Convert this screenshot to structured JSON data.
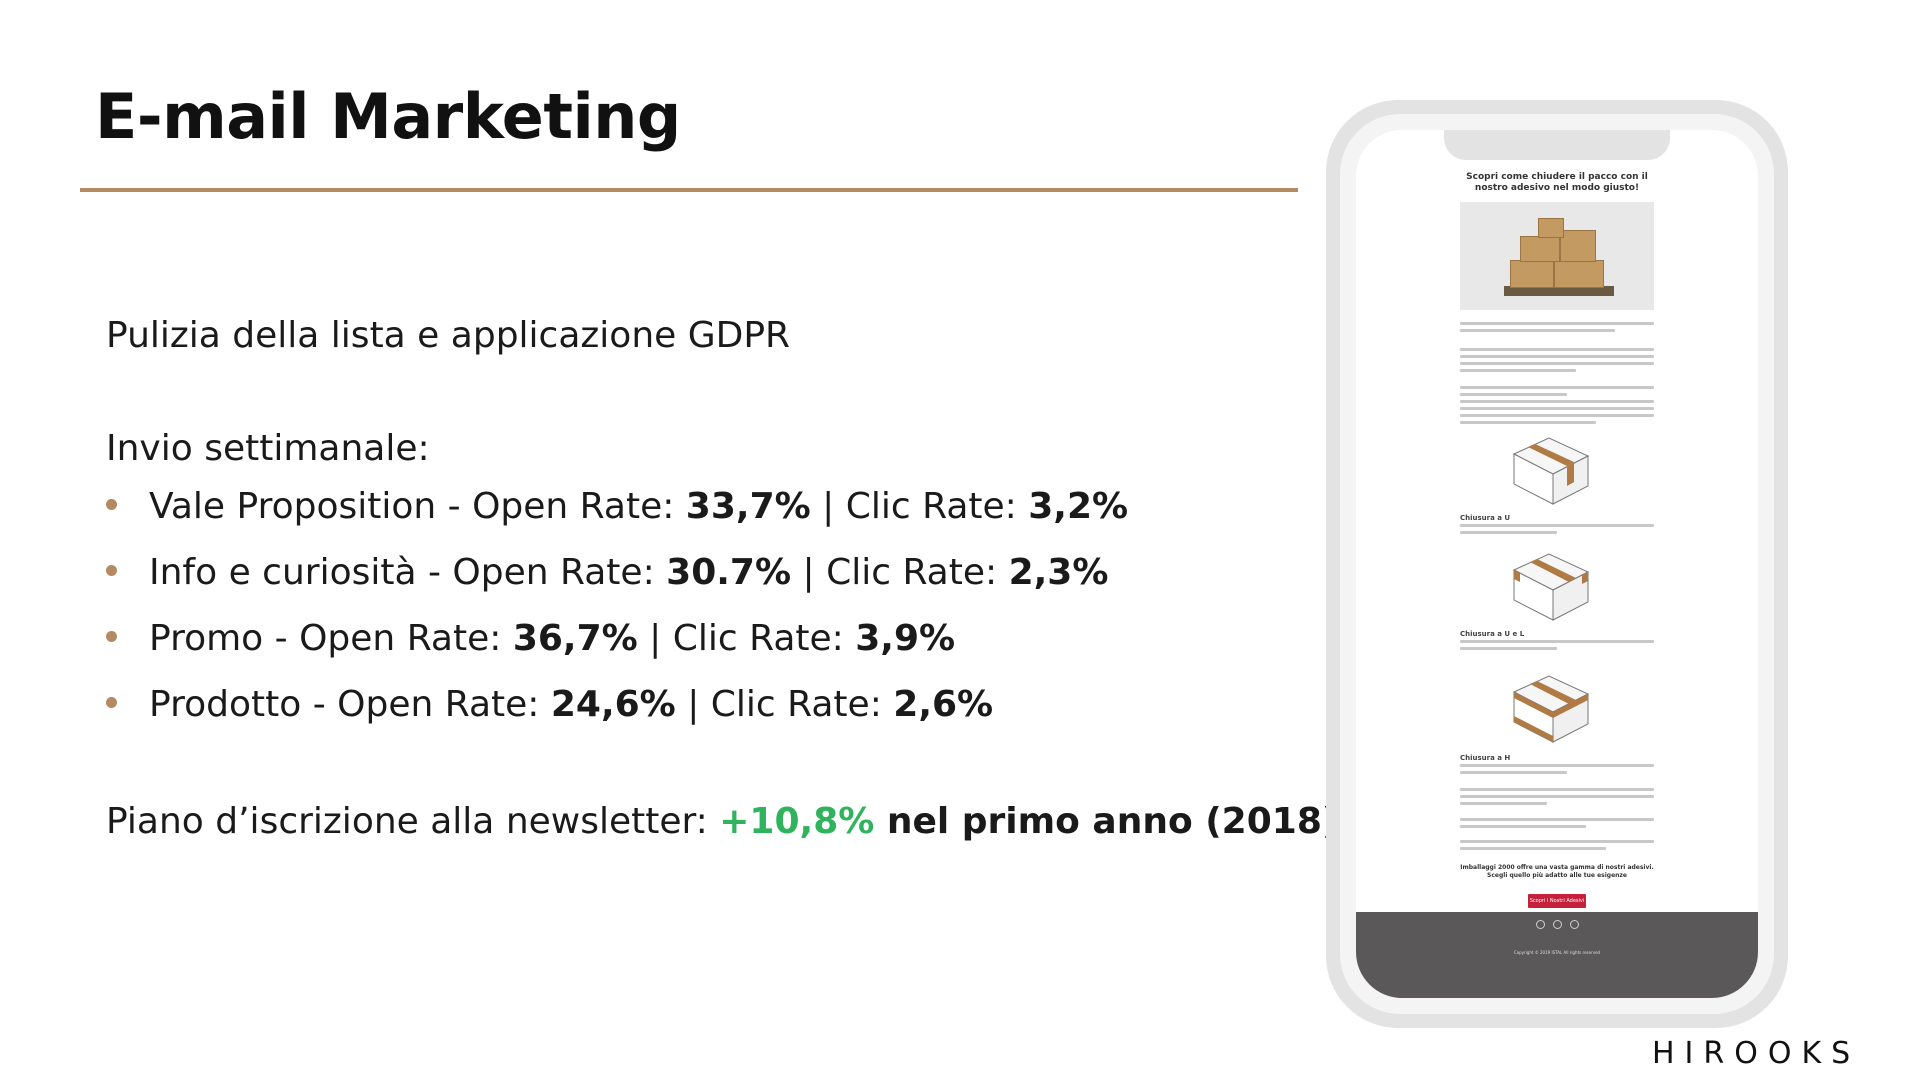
{
  "slide": {
    "title": "E-mail Marketing",
    "gdpr_line": "Pulizia della lista e applicazione GDPR",
    "weekly_heading": "Invio settimanale:",
    "bullets": [
      {
        "name": "Vale Proposition",
        "sep": " - Open Rate: ",
        "open": "33,7%",
        "mid": " | Clic Rate: ",
        "click": "3,2%"
      },
      {
        "name": "Info e curiosità",
        "sep": " - Open Rate: ",
        "open": "30.7%",
        "mid": " | Clic Rate: ",
        "click": "2,3%"
      },
      {
        "name": "Promo",
        "sep": " - Open Rate: ",
        "open": "36,7%",
        "mid": " | Clic Rate: ",
        "click": "3,9%"
      },
      {
        "name": "Prodotto",
        "sep": " - Open Rate: ",
        "open": "24,6%",
        "mid": " | Clic Rate: ",
        "click": "2,6%"
      }
    ],
    "subscription": {
      "prefix": "Piano d’iscrizione alla newsletter: ",
      "growth": "+10,8%",
      "suffix": " nel primo anno (2018)"
    },
    "logo": "HIROOKS"
  },
  "email_preview": {
    "headline": "Scopri come chiudere il pacco con il nostro adesivo nel modo giusto!",
    "sections": [
      {
        "label": "Chiusura a U"
      },
      {
        "label": "Chiusura a U e L"
      },
      {
        "label": "Chiusura a H"
      }
    ],
    "cta_text": "Imballaggi 2000 offre una vasta gamma di nostri adesivi. Scegli quello più adatto alle tue esigenze",
    "cta_button": "Scopri i Nostri Adesivi",
    "footer_copy": "Copyright © 2019 ISTAL All rights reserved",
    "colors": {
      "accent": "#b48a63",
      "highlight": "#2fb35c",
      "cta": "#c6213a",
      "footer": "#5b5859"
    }
  }
}
